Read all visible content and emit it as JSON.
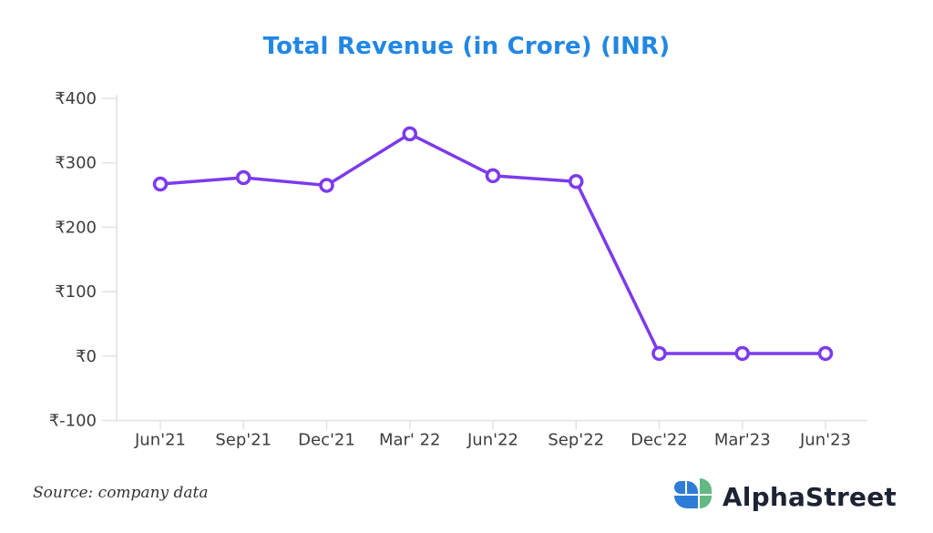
{
  "chart_data": {
    "type": "line",
    "title": "Total Revenue (in Crore) (INR)",
    "categories": [
      "Jun'21",
      "Sep'21",
      "Dec'21",
      "Mar' 22",
      "Jun'22",
      "Sep'22",
      "Dec'22",
      "Mar'23",
      "Jun'23"
    ],
    "values": [
      267,
      277,
      265,
      345,
      280,
      271,
      4,
      4,
      4
    ],
    "series_name": "Total Revenue",
    "xlabel": "",
    "ylabel": "",
    "y_ticks": [
      400,
      300,
      200,
      100,
      0,
      -100
    ],
    "y_tick_prefix": "₹",
    "ylim": [
      -100,
      400
    ],
    "grid": false,
    "legend": "none",
    "line_color": "#7c3aed",
    "marker": "open-circle",
    "marker_fill": "#ffffff",
    "axis_color": "#e2e2e2",
    "label_color": "#3d3d3d",
    "title_color": "#2287e4"
  },
  "footer": {
    "source": "Source: company data",
    "brand": "AlphaStreet"
  },
  "logo": {
    "blue": "#2e7cd6",
    "green": "#62b983"
  }
}
